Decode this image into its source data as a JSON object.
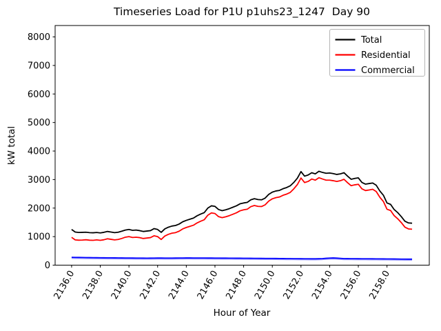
{
  "figure": {
    "background": "#ffffff"
  },
  "legend": {
    "entries": [
      "Total",
      "Residential",
      "Commercial"
    ],
    "border_color": "#b4b4b4",
    "fill": "#ffffff"
  },
  "chart_data": {
    "type": "line",
    "title": "Timeseries Load for P1U p1uhs23_1247  Day 90",
    "xlabel": "Hour of Year",
    "ylabel": "kW total",
    "grid": false,
    "legend_position": "upper right",
    "xlim": [
      2134.85,
      2160.95
    ],
    "ylim": [
      0,
      8400
    ],
    "xticks": [
      2136,
      2138,
      2140,
      2142,
      2144,
      2146,
      2148,
      2150,
      2152,
      2154,
      2156,
      2158
    ],
    "xtick_labels": [
      "2136.0",
      "2138.0",
      "2140.0",
      "2142.0",
      "2144.0",
      "2146.0",
      "2148.0",
      "2150.0",
      "2152.0",
      "2154.0",
      "2156.0",
      "2158.0"
    ],
    "yticks": [
      0,
      1000,
      2000,
      3000,
      4000,
      5000,
      6000,
      7000,
      8000
    ],
    "ytick_labels": [
      "0",
      "1000",
      "2000",
      "3000",
      "4000",
      "5000",
      "6000",
      "7000",
      "8000"
    ],
    "x": [
      2136.0,
      2136.25,
      2136.5,
      2136.75,
      2137.0,
      2137.25,
      2137.5,
      2137.75,
      2138.0,
      2138.25,
      2138.5,
      2138.75,
      2139.0,
      2139.25,
      2139.5,
      2139.75,
      2140.0,
      2140.25,
      2140.5,
      2140.75,
      2141.0,
      2141.25,
      2141.5,
      2141.75,
      2142.0,
      2142.25,
      2142.5,
      2142.75,
      2143.0,
      2143.25,
      2143.5,
      2143.75,
      2144.0,
      2144.25,
      2144.5,
      2144.75,
      2145.0,
      2145.25,
      2145.5,
      2145.75,
      2146.0,
      2146.25,
      2146.5,
      2146.75,
      2147.0,
      2147.25,
      2147.5,
      2147.75,
      2148.0,
      2148.25,
      2148.5,
      2148.75,
      2149.0,
      2149.25,
      2149.5,
      2149.75,
      2150.0,
      2150.25,
      2150.5,
      2150.75,
      2151.0,
      2151.25,
      2151.5,
      2151.75,
      2152.0,
      2152.25,
      2152.5,
      2152.75,
      2153.0,
      2153.25,
      2153.5,
      2153.75,
      2154.0,
      2154.25,
      2154.5,
      2154.75,
      2155.0,
      2155.25,
      2155.5,
      2155.75,
      2156.0,
      2156.25,
      2156.5,
      2156.75,
      2157.0,
      2157.25,
      2157.5,
      2157.75,
      2158.0,
      2158.25,
      2158.5,
      2158.75,
      2159.0,
      2159.25,
      2159.5,
      2159.75
    ],
    "series": [
      {
        "name": "Total",
        "color": "#000000",
        "values": [
          1250,
          1160,
          1145,
          1150,
          1155,
          1140,
          1135,
          1145,
          1130,
          1150,
          1180,
          1160,
          1140,
          1155,
          1190,
          1230,
          1250,
          1220,
          1230,
          1210,
          1180,
          1195,
          1210,
          1280,
          1250,
          1150,
          1270,
          1330,
          1370,
          1390,
          1440,
          1520,
          1570,
          1610,
          1650,
          1730,
          1790,
          1840,
          2000,
          2080,
          2060,
          1950,
          1910,
          1940,
          1980,
          2030,
          2080,
          2150,
          2180,
          2200,
          2290,
          2330,
          2300,
          2290,
          2350,
          2480,
          2560,
          2600,
          2620,
          2680,
          2720,
          2780,
          2900,
          3050,
          3280,
          3120,
          3160,
          3240,
          3200,
          3290,
          3250,
          3220,
          3230,
          3210,
          3180,
          3200,
          3240,
          3120,
          3010,
          3040,
          3060,
          2900,
          2840,
          2860,
          2880,
          2800,
          2600,
          2450,
          2180,
          2130,
          1950,
          1840,
          1700,
          1540,
          1480,
          1470
        ]
      },
      {
        "name": "Residential",
        "color": "#ff0000",
        "values": [
          975,
          885,
          875,
          880,
          890,
          875,
          870,
          885,
          870,
          890,
          925,
          905,
          885,
          900,
          935,
          980,
          1000,
          970,
          980,
          965,
          935,
          950,
          965,
          1030,
          1000,
          900,
          1020,
          1080,
          1120,
          1140,
          1190,
          1270,
          1320,
          1360,
          1400,
          1480,
          1540,
          1590,
          1750,
          1830,
          1810,
          1700,
          1665,
          1695,
          1735,
          1785,
          1835,
          1905,
          1940,
          1960,
          2050,
          2090,
          2060,
          2055,
          2115,
          2245,
          2325,
          2365,
          2390,
          2450,
          2490,
          2550,
          2675,
          2825,
          3055,
          2895,
          2935,
          3020,
          2980,
          3065,
          3020,
          2980,
          2980,
          2960,
          2935,
          2960,
          3010,
          2890,
          2785,
          2815,
          2835,
          2675,
          2615,
          2635,
          2660,
          2580,
          2380,
          2230,
          1960,
          1915,
          1735,
          1625,
          1490,
          1330,
          1270,
          1260
        ]
      },
      {
        "name": "Commercial",
        "color": "#0000ff",
        "values": [
          275,
          272,
          270,
          268,
          266,
          264,
          262,
          261,
          260,
          258,
          257,
          256,
          255,
          254,
          252,
          251,
          250,
          249,
          248,
          247,
          246,
          245,
          246,
          248,
          250,
          249,
          248,
          248,
          248,
          249,
          250,
          251,
          252,
          252,
          251,
          251,
          250,
          250,
          249,
          249,
          248,
          247,
          246,
          246,
          245,
          244,
          243,
          243,
          242,
          241,
          240,
          239,
          238,
          237,
          236,
          236,
          235,
          234,
          232,
          231,
          230,
          229,
          227,
          226,
          225,
          224,
          223,
          222,
          222,
          225,
          230,
          240,
          248,
          252,
          246,
          238,
          230,
          228,
          227,
          226,
          225,
          224,
          224,
          223,
          222,
          221,
          220,
          219,
          218,
          217,
          216,
          214,
          212,
          211,
          210,
          210
        ]
      }
    ]
  }
}
